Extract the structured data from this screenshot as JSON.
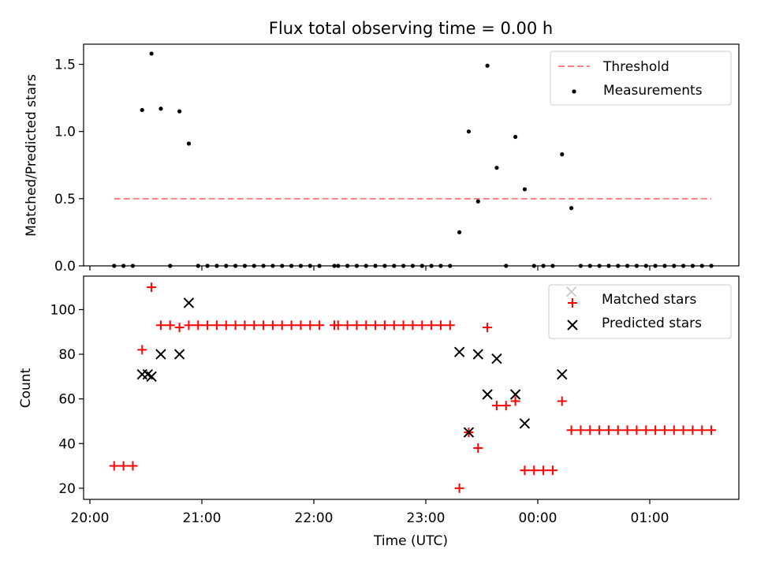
{
  "chart_data": [
    {
      "type": "scatter",
      "title": "Flux total observing time = 0.00 h",
      "xlabel": "",
      "ylabel": "Matched/Predicted stars",
      "ylim": [
        0,
        1.65
      ],
      "yticks": [
        "0.0",
        "0.5",
        "1.0",
        "1.5"
      ],
      "ytick_values": [
        0,
        0.5,
        1.0,
        1.5
      ],
      "legend_position": "top-right",
      "series": [
        {
          "name": "Threshold",
          "kind": "line",
          "style": "dashed",
          "color": "#ff7f7f",
          "x": [
            "20:13",
            "25:33"
          ],
          "y": [
            0.5,
            0.5
          ]
        },
        {
          "name": "Measurements",
          "kind": "points",
          "color": "#000000",
          "x": [
            "20:13",
            "20:18",
            "20:23",
            "20:28",
            "20:33",
            "20:38",
            "20:43",
            "20:48",
            "20:53",
            "20:58",
            "21:03",
            "21:08",
            "21:13",
            "21:18",
            "21:23",
            "21:28",
            "21:33",
            "21:38",
            "21:43",
            "21:48",
            "21:53",
            "21:58",
            "22:03",
            "22:11",
            "22:13",
            "22:18",
            "22:23",
            "22:28",
            "22:33",
            "22:38",
            "22:43",
            "22:48",
            "22:53",
            "22:58",
            "23:03",
            "23:08",
            "23:13",
            "23:18",
            "23:23",
            "23:28",
            "23:33",
            "23:38",
            "23:43",
            "23:48",
            "23:53",
            "23:58",
            "00:03",
            "00:08",
            "00:13",
            "00:18",
            "00:23",
            "00:28",
            "00:33",
            "00:38",
            "00:43",
            "00:48",
            "00:53",
            "00:58",
            "01:03",
            "01:08",
            "01:13",
            "01:18",
            "01:23",
            "01:28",
            "01:33"
          ],
          "y": [
            0,
            0,
            0,
            1.16,
            1.58,
            1.17,
            0,
            1.15,
            0.91,
            0,
            0,
            0,
            0,
            0,
            0,
            0,
            0,
            0,
            0,
            0,
            0,
            0,
            0,
            0,
            0,
            0,
            0,
            0,
            0,
            0,
            0,
            0,
            0,
            0,
            0,
            0,
            0,
            0.25,
            1.0,
            0.48,
            1.49,
            0.73,
            0,
            0.96,
            0.57,
            0,
            0,
            0,
            0.83,
            0.43,
            0,
            0,
            0,
            0,
            0,
            0,
            0,
            0,
            0,
            0,
            0,
            0,
            0,
            0,
            0
          ]
        }
      ]
    },
    {
      "type": "scatter",
      "title": "",
      "xlabel": "Time (UTC)",
      "ylabel": "Count",
      "ylim": [
        15,
        115
      ],
      "yticks": [
        "20",
        "40",
        "60",
        "80",
        "100"
      ],
      "ytick_values": [
        20,
        40,
        60,
        80,
        100
      ],
      "xticks": [
        "20:00",
        "21:00",
        "22:00",
        "23:00",
        "00:00",
        "01:00"
      ],
      "legend_position": "top-right",
      "series": [
        {
          "name": "Matched stars",
          "marker": "plus",
          "color": "#ff0000",
          "x": [
            "20:13",
            "20:18",
            "20:23",
            "20:28",
            "20:33",
            "20:38",
            "20:43",
            "20:48",
            "20:53",
            "20:58",
            "21:03",
            "21:08",
            "21:13",
            "21:18",
            "21:23",
            "21:28",
            "21:33",
            "21:38",
            "21:43",
            "21:48",
            "21:53",
            "21:58",
            "22:03",
            "22:11",
            "22:13",
            "22:18",
            "22:23",
            "22:28",
            "22:33",
            "22:38",
            "22:43",
            "22:48",
            "22:53",
            "22:58",
            "23:03",
            "23:08",
            "23:13",
            "23:18",
            "23:23",
            "23:28",
            "23:33",
            "23:38",
            "23:43",
            "23:48",
            "23:53",
            "23:58",
            "00:03",
            "00:08",
            "00:13",
            "00:18",
            "00:23",
            "00:28",
            "00:33",
            "00:38",
            "00:43",
            "00:48",
            "00:53",
            "00:58",
            "01:03",
            "01:08",
            "01:13",
            "01:18",
            "01:23",
            "01:28",
            "01:33"
          ],
          "y": [
            30,
            30,
            30,
            82,
            110,
            93,
            93,
            92,
            93,
            93,
            93,
            93,
            93,
            93,
            93,
            93,
            93,
            93,
            93,
            93,
            93,
            93,
            93,
            93,
            93,
            93,
            93,
            93,
            93,
            93,
            93,
            93,
            93,
            93,
            93,
            93,
            93,
            20,
            45,
            38,
            92,
            57,
            57,
            59,
            28,
            28,
            28,
            28,
            59,
            46,
            46,
            46,
            46,
            46,
            46,
            46,
            46,
            46,
            46,
            46,
            46,
            46,
            46,
            46,
            46
          ]
        },
        {
          "name": "Predicted stars",
          "marker": "cross",
          "color": "#000000",
          "x": [
            "20:28",
            "20:31",
            "20:33",
            "20:38",
            "20:48",
            "20:53",
            "23:18",
            "23:23",
            "23:28",
            "23:33",
            "23:38",
            "23:48",
            "23:53",
            "00:13",
            "00:18"
          ],
          "y": [
            71,
            71,
            70,
            80,
            80,
            103,
            81,
            45,
            80,
            62,
            78,
            62,
            49,
            71,
            108
          ]
        }
      ]
    }
  ]
}
